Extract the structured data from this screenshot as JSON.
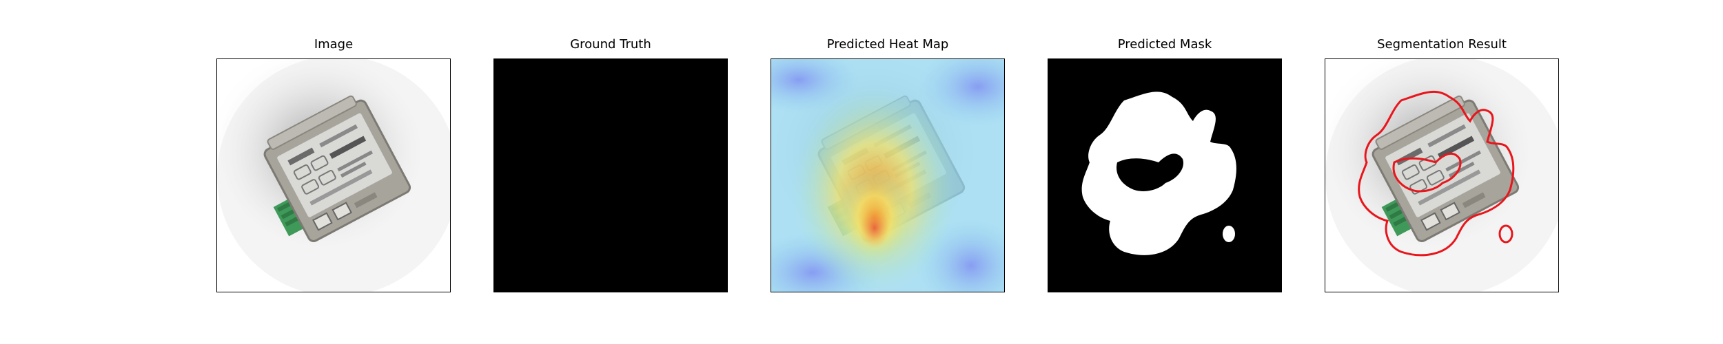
{
  "figure": {
    "panels": [
      {
        "title": "Image"
      },
      {
        "title": "Ground Truth"
      },
      {
        "title": "Predicted Heat Map"
      },
      {
        "title": "Predicted Mask"
      },
      {
        "title": "Segmentation Result"
      }
    ]
  },
  "colors": {
    "frame": "#000000",
    "background_black": "#000000",
    "mask_white": "#ffffff",
    "contour_red": "#e8161c",
    "device_body": "#a7a49c",
    "device_label": "#d9d9d6",
    "terminal_green": "#3f9a5a"
  }
}
